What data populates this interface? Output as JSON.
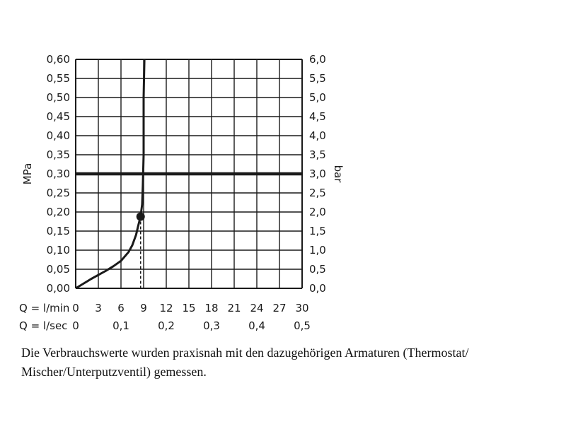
{
  "chart_data": {
    "type": "line",
    "x_unit_label": "Q = l/min",
    "x_ticks": [
      0,
      3,
      6,
      9,
      12,
      15,
      18,
      21,
      24,
      27,
      30
    ],
    "x2_unit_label": "Q = l/sec",
    "x2_ticks": [
      "0",
      "0,1",
      "0,2",
      "0,3",
      "0,4",
      "0,5"
    ],
    "x2_tick_values_lmin": [
      0,
      6,
      12,
      18,
      24,
      30
    ],
    "xlim": [
      0,
      30
    ],
    "ylabel_left": "MPa",
    "ylabel_right": "bar",
    "ylim": [
      0,
      0.6
    ],
    "y_ticks_left": [
      "0,00",
      "0,05",
      "0,10",
      "0,15",
      "0,20",
      "0,25",
      "0,30",
      "0,35",
      "0,40",
      "0,45",
      "0,50",
      "0,55",
      "0,60"
    ],
    "y_ticks_right": [
      "0,0",
      "0,5",
      "1,0",
      "1,5",
      "2,0",
      "2,5",
      "3,0",
      "3,5",
      "4,0",
      "4,5",
      "5,0",
      "5,5",
      "6,0"
    ],
    "grid": true,
    "series": [
      {
        "x": [
          0,
          1,
          2,
          3,
          4,
          5,
          6,
          7,
          7.5,
          8,
          8.3,
          8.6,
          8.8,
          8.9,
          9.0,
          9.0,
          9.1
        ],
        "y": [
          0,
          0.012,
          0.024,
          0.035,
          0.046,
          0.058,
          0.072,
          0.095,
          0.113,
          0.14,
          0.165,
          0.188,
          0.22,
          0.27,
          0.35,
          0.5,
          0.6
        ]
      }
    ],
    "reference_line_y": 0.3,
    "marker": {
      "x": 8.6,
      "y": 0.188
    }
  },
  "caption": {
    "line1": "Die Verbrauchswerte wurden praxisnah mit den dazugehörigen Armaturen (Thermostat/",
    "line2": "Mischer/Unterputzventil) gemessen."
  }
}
